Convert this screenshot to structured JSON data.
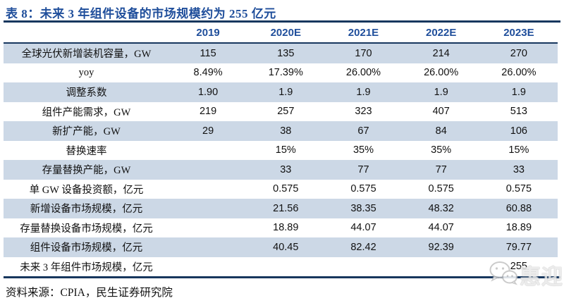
{
  "title": "表 8：未来 3 年组件设备的市场规模约为 255 亿元",
  "table": {
    "columns": [
      "",
      "2019",
      "2020E",
      "2021E",
      "2022E",
      "2023E"
    ],
    "rows": [
      {
        "label": "全球光伏新增装机容量，GW",
        "values": [
          "115",
          "135",
          "170",
          "214",
          "270"
        ]
      },
      {
        "label": "yoy",
        "values": [
          "8.49%",
          "17.39%",
          "26.00%",
          "26.00%",
          "26.00%"
        ]
      },
      {
        "label": "调整系数",
        "values": [
          "1.90",
          "1.9",
          "1.9",
          "1.9",
          "1.9"
        ]
      },
      {
        "label": "组件产能需求，GW",
        "values": [
          "219",
          "257",
          "323",
          "407",
          "513"
        ]
      },
      {
        "label": "新扩产能，GW",
        "values": [
          "29",
          "38",
          "67",
          "84",
          "106"
        ]
      },
      {
        "label": "替换速率",
        "values": [
          "",
          "15%",
          "35%",
          "35%",
          "15%"
        ]
      },
      {
        "label": "存量替换产能，GW",
        "values": [
          "",
          "33",
          "77",
          "77",
          "33"
        ]
      },
      {
        "label": "单 GW 设备投资额，亿元",
        "values": [
          "",
          "0.575",
          "0.575",
          "0.575",
          "0.575"
        ]
      },
      {
        "label": "新增设备市场规模，亿元",
        "values": [
          "",
          "21.56",
          "38.35",
          "48.32",
          "60.88"
        ]
      },
      {
        "label": "存量替换设备市场规模，亿元",
        "values": [
          "",
          "18.89",
          "44.07",
          "44.07",
          "18.89"
        ]
      },
      {
        "label": "组件设备市场规模，亿元",
        "values": [
          "",
          "40.45",
          "82.42",
          "92.39",
          "79.77"
        ]
      },
      {
        "label": "未来 3 年组件市场规模，亿元",
        "values": [
          "",
          "",
          "",
          "",
          "255"
        ]
      }
    ]
  },
  "source": "资料来源：CPIA，民生证券研究院",
  "watermark": {
    "icon": "wechat-icon",
    "text": "惠迎"
  },
  "colors": {
    "rule_navy": "#17375e",
    "header_blue": "#1f4e9b",
    "row_stripe": "#ccd8e6"
  }
}
